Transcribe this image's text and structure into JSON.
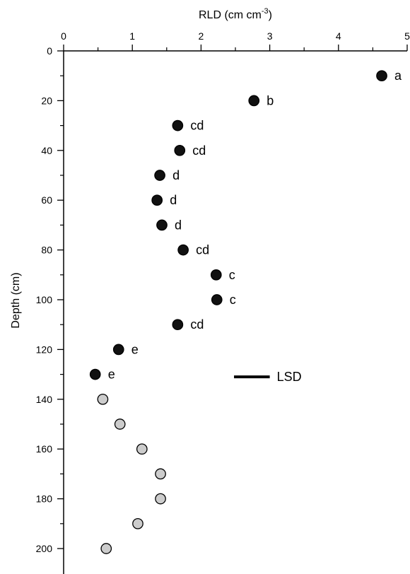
{
  "chart_data": {
    "type": "scatter",
    "xlabel": "RLD (cm cm",
    "xlabel_superscript": "-3",
    "xlabel_close": ")",
    "ylabel": "Depth (cm)",
    "x_axis_position": "top",
    "y_axis_inverted": true,
    "xlim": [
      0,
      5
    ],
    "ylim": [
      0,
      210
    ],
    "x_ticks": [
      0,
      1,
      2,
      3,
      4,
      5
    ],
    "y_ticks": [
      0,
      20,
      40,
      60,
      80,
      100,
      120,
      140,
      160,
      180,
      200
    ],
    "grid": false,
    "series": [
      {
        "marker_color": "#111111",
        "points": [
          {
            "x": 4.63,
            "y": 10,
            "label": "a"
          },
          {
            "x": 2.77,
            "y": 20,
            "label": "b"
          },
          {
            "x": 1.66,
            "y": 30,
            "label": "cd"
          },
          {
            "x": 1.69,
            "y": 40,
            "label": "cd"
          },
          {
            "x": 1.4,
            "y": 50,
            "label": "d"
          },
          {
            "x": 1.36,
            "y": 60,
            "label": "d"
          },
          {
            "x": 1.43,
            "y": 70,
            "label": "d"
          },
          {
            "x": 1.74,
            "y": 80,
            "label": "cd"
          },
          {
            "x": 2.22,
            "y": 90,
            "label": "c"
          },
          {
            "x": 2.23,
            "y": 100,
            "label": "c"
          },
          {
            "x": 1.66,
            "y": 110,
            "label": "cd"
          },
          {
            "x": 0.8,
            "y": 120,
            "label": "e"
          },
          {
            "x": 0.46,
            "y": 130,
            "label": "e"
          }
        ]
      },
      {
        "marker_color": "#cccccc",
        "points": [
          {
            "x": 0.57,
            "y": 140
          },
          {
            "x": 0.82,
            "y": 150
          },
          {
            "x": 1.14,
            "y": 160
          },
          {
            "x": 1.41,
            "y": 170
          },
          {
            "x": 1.41,
            "y": 180
          },
          {
            "x": 1.08,
            "y": 190
          },
          {
            "x": 0.62,
            "y": 200
          }
        ]
      }
    ],
    "lsd": {
      "label": "LSD",
      "x_start": 2.48,
      "x_end": 3.0,
      "y": 131
    }
  }
}
